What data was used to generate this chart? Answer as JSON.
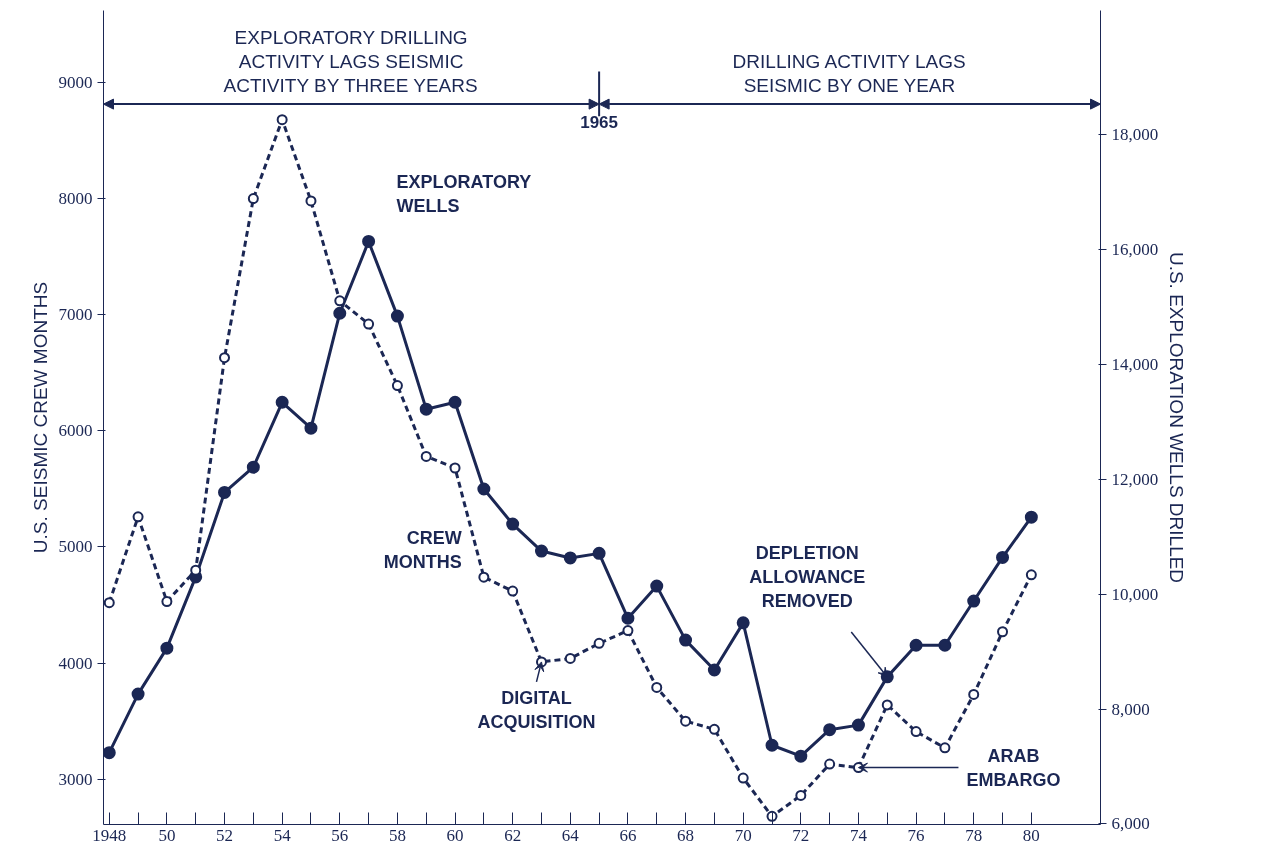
{
  "chart_data": {
    "type": "line",
    "ylabel": "U.S. SEISMIC CREW MONTHS",
    "y2label": "U.S. EXPLORATION WELLS DRILLED",
    "x": [
      1948,
      1949,
      1950,
      1951,
      1952,
      1953,
      1954,
      1955,
      1956,
      1957,
      1958,
      1959,
      1960,
      1961,
      1962,
      1963,
      1964,
      1965,
      1966,
      1967,
      1968,
      1969,
      1970,
      1971,
      1972,
      1973,
      1974,
      1975,
      1976,
      1977,
      1978,
      1979,
      1980
    ],
    "series": [
      {
        "name": "EXPLORATORY WELLS",
        "color": "#1b2754",
        "axis": "y2",
        "line_style": "solid",
        "marker": "circle",
        "values": [
          7240,
          8260,
          9060,
          10300,
          11770,
          12210,
          13340,
          12890,
          14890,
          16140,
          14840,
          13220,
          13340,
          11830,
          11220,
          10750,
          10630,
          10710,
          9580,
          10140,
          9200,
          8680,
          9500,
          7370,
          7180,
          7640,
          7720,
          8560,
          9110,
          9110,
          9880,
          10640,
          11340
        ]
      },
      {
        "name": "CREW MONTHS",
        "color": "#1b2754",
        "line_style": "dashed",
        "marker": "circle",
        "values": [
          4520,
          5260,
          4530,
          4800,
          6630,
          8000,
          8680,
          7980,
          7120,
          6920,
          6390,
          5780,
          5680,
          4740,
          4620,
          4010,
          4040,
          4170,
          4280,
          3790,
          3500,
          3430,
          3010,
          2680,
          2860,
          3130,
          3100,
          3640,
          3410,
          3270,
          3730,
          4270,
          4760
        ]
      }
    ],
    "xlim": [
      1947.8,
      1982.4
    ],
    "ylim": [
      2610,
      9620
    ],
    "y2lim": [
      5990,
      20160
    ],
    "xticks": [
      {
        "value": 1948,
        "label": "1948"
      },
      {
        "value": 1949,
        "label": null
      },
      {
        "value": 1950,
        "label": "50"
      },
      {
        "value": 1951,
        "label": null
      },
      {
        "value": 1952,
        "label": "52"
      },
      {
        "value": 1953,
        "label": null
      },
      {
        "value": 1954,
        "label": "54"
      },
      {
        "value": 1955,
        "label": null
      },
      {
        "value": 1956,
        "label": "56"
      },
      {
        "value": 1957,
        "label": null
      },
      {
        "value": 1958,
        "label": "58"
      },
      {
        "value": 1959,
        "label": null
      },
      {
        "value": 1960,
        "label": "60"
      },
      {
        "value": 1961,
        "label": null
      },
      {
        "value": 1962,
        "label": "62"
      },
      {
        "value": 1963,
        "label": null
      },
      {
        "value": 1964,
        "label": "64"
      },
      {
        "value": 1965,
        "label": null
      },
      {
        "value": 1966,
        "label": "66"
      },
      {
        "value": 1967,
        "label": null
      },
      {
        "value": 1968,
        "label": "68"
      },
      {
        "value": 1969,
        "label": null
      },
      {
        "value": 1970,
        "label": "70"
      },
      {
        "value": 1971,
        "label": null
      },
      {
        "value": 1972,
        "label": "72"
      },
      {
        "value": 1973,
        "label": null
      },
      {
        "value": 1974,
        "label": "74"
      },
      {
        "value": 1975,
        "label": null
      },
      {
        "value": 1976,
        "label": "76"
      },
      {
        "value": 1977,
        "label": null
      },
      {
        "value": 1978,
        "label": "78"
      },
      {
        "value": 1979,
        "label": null
      },
      {
        "value": 1980,
        "label": "80"
      }
    ],
    "yticks": [
      3000,
      4000,
      5000,
      6000,
      7000,
      8000,
      9000
    ],
    "y2ticks": [
      {
        "value": 6000,
        "label": "6,000"
      },
      {
        "value": 8000,
        "label": "8,000"
      },
      {
        "value": 10000,
        "label": "10,000"
      },
      {
        "value": 12000,
        "label": "12,000"
      },
      {
        "value": 14000,
        "label": "14,000"
      },
      {
        "value": 16000,
        "label": "16,000"
      },
      {
        "value": 18000,
        "label": "18,000"
      }
    ],
    "grid": false,
    "ref_lines": [
      {
        "axis": "x",
        "value": 1965,
        "label": "1965"
      }
    ],
    "annotations": [
      "EXPLORATORY DRILLING\nACTIVITY LAGS SEISMIC\nACTIVITY BY THREE YEARS",
      "DRILLING ACTIVITY LAGS\nSEISMIC BY ONE YEAR",
      {
        "text": "DIGITAL\nACQUISITION",
        "x": 1963,
        "y": 4010
      },
      {
        "text": "DEPLETION\nALLOWANCE\nREMOVED",
        "x": 1975,
        "y": 3880
      },
      {
        "text": "ARAB\nEMBARGO",
        "x": 1974,
        "y": 3100
      }
    ]
  }
}
